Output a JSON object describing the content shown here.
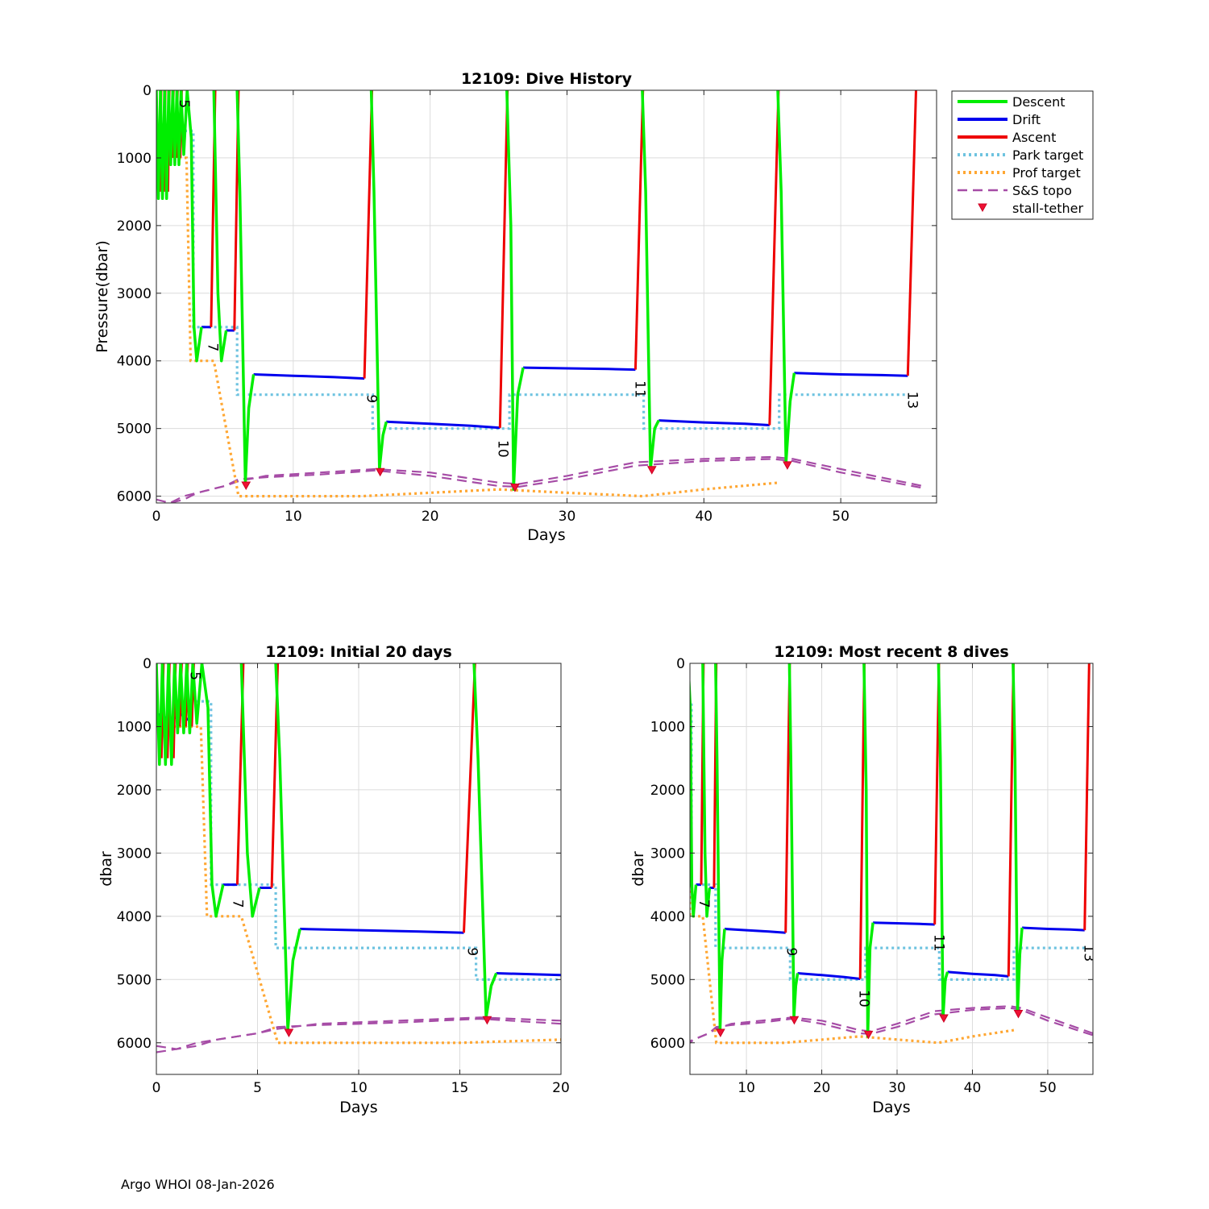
{
  "footer": "Argo WHOI 08-Jan-2026",
  "colors": {
    "descent": "#00ee00",
    "drift": "#0000ee",
    "ascent": "#ee0000",
    "park": "#6ec3e0",
    "prof": "#ffa733",
    "topo": "#a64ca6",
    "stall": "#ee1133"
  },
  "legend": [
    {
      "key": "descent",
      "label": "Descent",
      "style": "solid"
    },
    {
      "key": "drift",
      "label": "Drift",
      "style": "solid"
    },
    {
      "key": "ascent",
      "label": "Ascent",
      "style": "solid"
    },
    {
      "key": "park",
      "label": "Park target",
      "style": "dotted"
    },
    {
      "key": "prof",
      "label": "Prof target",
      "style": "dotted"
    },
    {
      "key": "topo",
      "label": "S&S topo",
      "style": "dashed"
    },
    {
      "key": "stall",
      "label": "stall-tether",
      "style": "marker"
    }
  ],
  "chart_data": [
    {
      "id": "main",
      "type": "line",
      "title": "12109: Dive History",
      "xlabel": "Days",
      "ylabel": "Pressure(dbar)",
      "xlim": [
        0,
        57
      ],
      "ylim": [
        0,
        6100
      ],
      "xticks": [
        0,
        10,
        20,
        30,
        40,
        50
      ],
      "yticks": [
        0,
        1000,
        2000,
        3000,
        4000,
        5000,
        6000
      ],
      "legend_position": "outside-top-right"
    },
    {
      "id": "initial",
      "type": "line",
      "title": "12109: Initial 20 days",
      "xlabel": "Days",
      "ylabel": "dbar",
      "xlim": [
        0,
        20
      ],
      "ylim": [
        0,
        6500
      ],
      "xticks": [
        0,
        5,
        10,
        15,
        20
      ],
      "yticks": [
        0,
        1000,
        2000,
        3000,
        4000,
        5000,
        6000
      ]
    },
    {
      "id": "recent",
      "type": "line",
      "title": "12109: Most recent 8 dives",
      "xlabel": "Days",
      "ylabel": "dbar",
      "xlim": [
        2.5,
        56
      ],
      "ylim": [
        0,
        6500
      ],
      "xticks": [
        10,
        20,
        30,
        40,
        50
      ],
      "yticks": [
        0,
        1000,
        2000,
        3000,
        4000,
        5000,
        6000
      ]
    }
  ],
  "series": {
    "descent": [
      [
        [
          0.0,
          0
        ],
        [
          0.15,
          1600
        ],
        [
          0.3,
          0
        ]
      ],
      [
        [
          0.3,
          0
        ],
        [
          0.45,
          1600
        ],
        [
          0.6,
          0
        ]
      ],
      [
        [
          0.6,
          0
        ],
        [
          0.75,
          1600
        ],
        [
          0.9,
          0
        ]
      ],
      [
        [
          0.9,
          0
        ],
        [
          1.05,
          1100
        ],
        [
          1.2,
          0
        ]
      ],
      [
        [
          1.2,
          0
        ],
        [
          1.35,
          1100
        ],
        [
          1.5,
          0
        ]
      ],
      [
        [
          1.5,
          0
        ],
        [
          1.65,
          1100
        ],
        [
          1.8,
          0
        ]
      ],
      [
        [
          1.8,
          0
        ],
        [
          2.0,
          950
        ],
        [
          2.25,
          0
        ]
      ],
      [
        [
          2.25,
          0
        ],
        [
          2.55,
          700
        ],
        [
          2.75,
          3500
        ],
        [
          2.95,
          4000
        ],
        [
          3.3,
          3500
        ]
      ],
      [
        [
          4.2,
          0
        ],
        [
          4.5,
          3000
        ],
        [
          4.75,
          4000
        ],
        [
          5.1,
          3550
        ]
      ],
      [
        [
          5.9,
          0
        ],
        [
          6.1,
          1500
        ],
        [
          6.5,
          5800
        ],
        [
          6.75,
          4700
        ],
        [
          7.1,
          4200
        ]
      ],
      [
        [
          15.7,
          0
        ],
        [
          15.9,
          1500
        ],
        [
          16.3,
          5600
        ],
        [
          16.55,
          5100
        ],
        [
          16.8,
          4900
        ]
      ],
      [
        [
          25.6,
          0
        ],
        [
          25.9,
          2000
        ],
        [
          26.1,
          5900
        ],
        [
          26.4,
          4500
        ],
        [
          26.8,
          4100
        ]
      ],
      [
        [
          35.5,
          0
        ],
        [
          35.75,
          1500
        ],
        [
          36.1,
          5600
        ],
        [
          36.4,
          5000
        ],
        [
          36.7,
          4880
        ]
      ],
      [
        [
          45.4,
          0
        ],
        [
          45.65,
          1500
        ],
        [
          46.0,
          5500
        ],
        [
          46.3,
          4600
        ],
        [
          46.6,
          4180
        ]
      ]
    ],
    "drift": [
      [
        [
          0.1,
          800
        ],
        [
          0.3,
          900
        ],
        [
          0.5,
          850
        ],
        [
          0.7,
          900
        ],
        [
          1.0,
          850
        ],
        [
          1.2,
          800
        ],
        [
          1.4,
          850
        ],
        [
          1.6,
          900
        ]
      ],
      [
        [
          3.3,
          3500
        ],
        [
          4.0,
          3500
        ]
      ],
      [
        [
          5.1,
          3550
        ],
        [
          5.7,
          3550
        ]
      ],
      [
        [
          7.1,
          4200
        ],
        [
          10.0,
          4220
        ],
        [
          13.0,
          4240
        ],
        [
          15.2,
          4260
        ]
      ],
      [
        [
          16.8,
          4900
        ],
        [
          20.0,
          4930
        ],
        [
          23.0,
          4960
        ],
        [
          25.1,
          4990
        ]
      ],
      [
        [
          26.8,
          4100
        ],
        [
          30.0,
          4110
        ],
        [
          33.0,
          4120
        ],
        [
          35.0,
          4130
        ]
      ],
      [
        [
          36.7,
          4880
        ],
        [
          40.0,
          4910
        ],
        [
          43.0,
          4930
        ],
        [
          44.8,
          4950
        ]
      ],
      [
        [
          46.6,
          4180
        ],
        [
          50.0,
          4200
        ],
        [
          53.0,
          4210
        ],
        [
          54.9,
          4220
        ]
      ]
    ],
    "ascent": [
      [
        [
          0.25,
          1500
        ],
        [
          0.35,
          0
        ]
      ],
      [
        [
          0.55,
          1500
        ],
        [
          0.65,
          0
        ]
      ],
      [
        [
          0.85,
          1500
        ],
        [
          0.95,
          0
        ]
      ],
      [
        [
          1.15,
          1000
        ],
        [
          1.25,
          0
        ]
      ],
      [
        [
          1.45,
          1000
        ],
        [
          1.55,
          0
        ]
      ],
      [
        [
          1.75,
          1000
        ],
        [
          1.85,
          0
        ]
      ],
      [
        [
          4.0,
          3500
        ],
        [
          4.3,
          0
        ]
      ],
      [
        [
          5.7,
          3550
        ],
        [
          6.0,
          0
        ]
      ],
      [
        [
          15.2,
          4260
        ],
        [
          15.75,
          0
        ]
      ],
      [
        [
          25.1,
          4990
        ],
        [
          25.65,
          0
        ]
      ],
      [
        [
          35.0,
          4130
        ],
        [
          35.55,
          0
        ]
      ],
      [
        [
          44.8,
          4950
        ],
        [
          45.45,
          0
        ]
      ],
      [
        [
          54.9,
          4220
        ],
        [
          55.5,
          0
        ]
      ]
    ],
    "park": [
      [
        0,
        600
      ],
      [
        2.7,
        600
      ],
      [
        2.7,
        3500
      ],
      [
        5.9,
        3500
      ],
      [
        5.9,
        4500
      ],
      [
        15.8,
        4500
      ],
      [
        15.8,
        5000
      ],
      [
        25.8,
        5000
      ],
      [
        25.8,
        4500
      ],
      [
        35.6,
        4500
      ],
      [
        35.6,
        5000
      ],
      [
        45.5,
        5000
      ],
      [
        45.5,
        4500
      ],
      [
        55,
        4500
      ]
    ],
    "prof": [
      [
        0,
        1000
      ],
      [
        2.2,
        1000
      ],
      [
        2.5,
        4000
      ],
      [
        4.2,
        4000
      ],
      [
        6.0,
        6000
      ],
      [
        15,
        6000
      ],
      [
        25,
        5900
      ],
      [
        30,
        5950
      ],
      [
        35.5,
        6000
      ],
      [
        40,
        5900
      ],
      [
        45.5,
        5800
      ]
    ],
    "topo1": [
      [
        0,
        6050
      ],
      [
        1,
        6100
      ],
      [
        2,
        6000
      ],
      [
        3,
        5950
      ],
      [
        5,
        5850
      ],
      [
        6,
        5780
      ],
      [
        8,
        5700
      ],
      [
        12,
        5650
      ],
      [
        16,
        5600
      ],
      [
        20,
        5650
      ],
      [
        25,
        5800
      ],
      [
        26.5,
        5820
      ],
      [
        30,
        5700
      ],
      [
        35,
        5500
      ],
      [
        40,
        5450
      ],
      [
        45,
        5420
      ],
      [
        46.5,
        5450
      ],
      [
        50,
        5600
      ],
      [
        56,
        5850
      ]
    ],
    "topo2": [
      [
        0,
        6150
      ],
      [
        1,
        6100
      ],
      [
        2,
        6050
      ],
      [
        3,
        5950
      ],
      [
        5,
        5850
      ],
      [
        6,
        5750
      ],
      [
        8,
        5720
      ],
      [
        12,
        5680
      ],
      [
        16,
        5620
      ],
      [
        20,
        5700
      ],
      [
        25,
        5850
      ],
      [
        26.5,
        5860
      ],
      [
        30,
        5750
      ],
      [
        35,
        5550
      ],
      [
        40,
        5480
      ],
      [
        45,
        5450
      ],
      [
        46.5,
        5480
      ],
      [
        50,
        5650
      ],
      [
        56,
        5880
      ]
    ],
    "stall": [
      [
        6.55,
        5850
      ],
      [
        16.35,
        5650
      ],
      [
        26.2,
        5880
      ],
      [
        36.2,
        5620
      ],
      [
        46.1,
        5550
      ]
    ],
    "dive_labels": [
      {
        "t": 1.7,
        "p": 200,
        "text": "5"
      },
      {
        "t": 3.8,
        "p": 3800,
        "text": "7"
      },
      {
        "t": 15.4,
        "p": 4560,
        "text": "9"
      },
      {
        "t": 25.0,
        "p": 5300,
        "text": "10"
      },
      {
        "t": 35.0,
        "p": 4420,
        "text": "11"
      },
      {
        "t": 54.9,
        "p": 4580,
        "text": "13"
      }
    ]
  }
}
